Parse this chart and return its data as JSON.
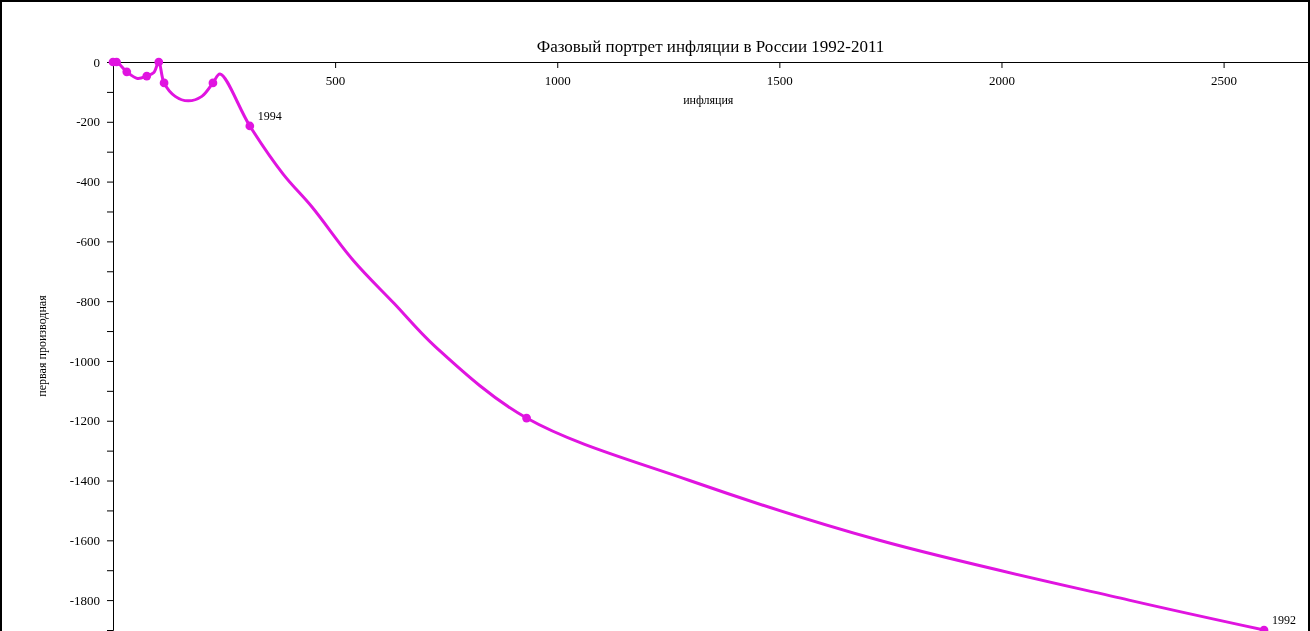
{
  "chart_data": {
    "type": "line",
    "title": "Фазовый портрет инфляции в России 1992-2011",
    "xlabel": "инфляция",
    "ylabel": "первая производная",
    "xlim": [
      0,
      2690
    ],
    "ylim": [
      -1900,
      0
    ],
    "xticks": [
      500,
      1000,
      1500,
      2000,
      2500
    ],
    "yticks": [
      0,
      {
        "value": -100,
        "label": null
      },
      -200,
      {
        "value": -300,
        "label": null
      },
      -400,
      {
        "value": -500,
        "label": null
      },
      -600,
      {
        "value": -700,
        "label": null
      },
      -800,
      {
        "value": -900,
        "label": null
      },
      -1000,
      {
        "value": -1100,
        "label": null
      },
      -1200,
      {
        "value": -1300,
        "label": null
      },
      -1400,
      {
        "value": -1500,
        "label": null
      },
      -1600,
      {
        "value": -1700,
        "label": null
      },
      -1800,
      {
        "value": -1900,
        "label": null
      }
    ],
    "grid": false,
    "line_style": "solid",
    "series": [
      {
        "marker": "none",
        "color": "#e014e0",
        "x": [
          2591,
          2287,
          1725,
          1298,
          931,
          726,
          633,
          541,
          448,
          383,
          308,
          241,
          225,
          200,
          169,
          140,
          115,
          103,
          92,
          76,
          55,
          31,
          12,
          0
        ],
        "values": [
          -1900,
          -1800,
          -1600,
          -1400,
          -1191,
          -953,
          -808,
          -664,
          -485,
          -375,
          -214,
          -40,
          -70,
          -115,
          -130,
          -115,
          -70,
          0,
          -35,
          -47,
          -55,
          -33,
          -5,
          0
        ]
      },
      {
        "type": "scatter",
        "marker": "circle",
        "color": "#e014e0",
        "x": [
          2591,
          931,
          308,
          225,
          115,
          103,
          76,
          31,
          8,
          0
        ],
        "values": [
          -1900,
          -1191,
          -214,
          -70,
          -70,
          0,
          -47,
          -33,
          0,
          0
        ]
      }
    ],
    "annotations": [
      {
        "text": "1994",
        "x": 308,
        "y": -214
      },
      {
        "text": "1992",
        "x": 2591,
        "y": -1900
      }
    ]
  }
}
